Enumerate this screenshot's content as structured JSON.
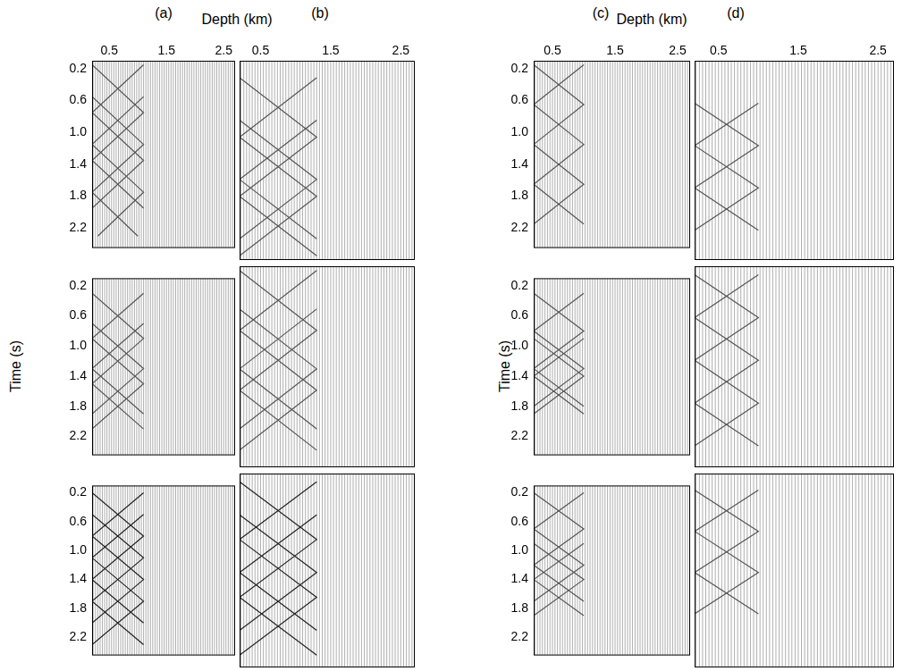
{
  "groups": [
    {
      "panels": [
        "(a)",
        "(b)"
      ],
      "x_label": "Depth (km)",
      "y_label": "Time (s)"
    },
    {
      "panels": [
        "(c)",
        "(d)"
      ],
      "x_label": "Depth (km)",
      "y_label": "Time (s)"
    }
  ],
  "trace_depths": [
    0.22,
    0.26,
    0.3,
    0.34,
    0.38,
    0.42,
    0.46,
    0.5,
    0.54,
    0.58,
    0.62,
    0.66,
    0.7,
    0.74,
    0.78,
    0.82,
    0.86,
    0.9,
    0.94,
    0.98,
    1.02,
    1.06,
    1.1,
    1.14,
    1.18,
    1.22,
    1.26,
    1.3,
    1.34,
    1.38,
    1.42,
    1.46,
    1.5,
    1.54,
    1.58,
    1.62,
    1.66,
    1.7,
    1.74,
    1.78,
    1.82,
    1.86,
    1.9,
    1.94,
    1.98,
    2.02,
    2.06,
    2.1,
    2.14,
    2.18,
    2.22,
    2.26,
    2.3,
    2.34,
    2.38,
    2.42,
    2.46,
    2.5,
    2.54,
    2.58,
    2.62,
    2.66,
    2.7
  ],
  "chart_data": [
    {
      "type": "line",
      "xlim": [
        0.2,
        2.7
      ],
      "xticks": [
        0.5,
        1.5,
        2.5
      ],
      "ylim": [
        0.1,
        2.45
      ],
      "yticks": [
        0.2,
        0.6,
        {
          "value": 1.0,
          "label": "1.0"
        },
        1.4,
        1.8,
        2.2
      ],
      "grid": false,
      "tick_labels": true,
      "color": "#555555",
      "marker": "none",
      "line_style": "solid",
      "series": [
        {
          "x": [
            0.2,
            1.1,
            0.2,
            1.1
          ],
          "values": [
            0.15,
            0.75,
            1.35,
            1.95
          ]
        },
        {
          "x": [
            1.1,
            0.2,
            1.1,
            0.2
          ],
          "values": [
            0.15,
            0.75,
            1.35,
            1.95
          ]
        },
        {
          "x": [
            0.2,
            1.1,
            0.2,
            1.0
          ],
          "values": [
            0.55,
            1.15,
            1.75,
            2.3
          ]
        },
        {
          "x": [
            1.1,
            0.2,
            1.1,
            0.3
          ],
          "values": [
            0.55,
            1.15,
            1.75,
            2.3
          ]
        }
      ]
    },
    {
      "type": "line",
      "xlim": [
        0.2,
        2.7
      ],
      "xticks": [
        0.5,
        1.5,
        2.5
      ],
      "ylim": [
        0.1,
        2.45
      ],
      "yticks": [
        0.2,
        0.6,
        {
          "value": 1.0,
          "label": "1.0"
        },
        1.4,
        1.8,
        2.2
      ],
      "grid": false,
      "tick_labels": "x",
      "color": "#555555",
      "marker": "none",
      "line_style": "solid",
      "series": [
        {
          "x": [
            0.2,
            1.3,
            0.2,
            1.3
          ],
          "values": [
            0.3,
            1.0,
            1.7,
            2.4
          ]
        },
        {
          "x": [
            1.3,
            0.2,
            1.3,
            0.2
          ],
          "values": [
            0.3,
            1.0,
            1.7,
            2.4
          ]
        },
        {
          "x": [
            0.2,
            1.3,
            0.2
          ],
          "values": [
            0.8,
            1.5,
            2.2
          ]
        },
        {
          "x": [
            1.3,
            0.2,
            1.3
          ],
          "values": [
            0.8,
            1.5,
            2.2
          ]
        }
      ]
    },
    {
      "type": "line",
      "xlim": [
        0.2,
        2.7
      ],
      "xticks": [
        0.5,
        1.5,
        2.5
      ],
      "ylim": [
        0.1,
        2.45
      ],
      "yticks": [
        0.2,
        0.6,
        {
          "value": 1.0,
          "label": "1.0"
        },
        1.4,
        1.8,
        2.2
      ],
      "grid": false,
      "tick_labels": true,
      "color": "#555555",
      "marker": "none",
      "line_style": "solid",
      "series": [
        {
          "x": [
            0.2,
            1.0,
            0.2,
            1.0,
            0.2
          ],
          "values": [
            0.15,
            0.65,
            1.15,
            1.65,
            2.15
          ]
        },
        {
          "x": [
            1.0,
            0.2,
            1.0,
            0.2,
            1.0
          ],
          "values": [
            0.15,
            0.65,
            1.15,
            1.65,
            2.15
          ]
        }
      ]
    },
    {
      "type": "line",
      "xlim": [
        0.2,
        2.7
      ],
      "xticks": [
        0.5,
        1.5,
        2.5
      ],
      "ylim": [
        0.1,
        2.45
      ],
      "yticks": [
        0.2,
        0.6,
        {
          "value": 1.0,
          "label": "1.0"
        },
        1.4,
        1.8,
        2.2
      ],
      "grid": false,
      "tick_labels": "x",
      "color": "#555555",
      "marker": "none",
      "line_style": "solid",
      "series": [
        {
          "x": [
            0.2,
            1.0,
            0.2,
            1.0
          ],
          "values": [
            0.6,
            1.1,
            1.6,
            2.1
          ]
        },
        {
          "x": [
            1.0,
            0.2,
            1.0,
            0.2
          ],
          "values": [
            0.6,
            1.1,
            1.6,
            2.1
          ]
        }
      ]
    },
    {
      "type": "line",
      "xlim": [
        0.2,
        2.7
      ],
      "xticks": [
        0.5,
        1.5,
        2.5
      ],
      "ylim": [
        0.1,
        2.45
      ],
      "yticks": [
        0.2,
        0.6,
        {
          "value": 1.0,
          "label": "1.0"
        },
        1.4,
        1.8,
        2.2
      ],
      "grid": false,
      "tick_labels": "y",
      "color": "#555555",
      "marker": "none",
      "line_style": "solid",
      "series": [
        {
          "x": [
            0.2,
            1.1,
            0.2,
            1.1
          ],
          "values": [
            0.3,
            0.9,
            1.5,
            2.1
          ]
        },
        {
          "x": [
            1.1,
            0.2,
            1.1,
            0.2
          ],
          "values": [
            0.3,
            0.9,
            1.5,
            2.1
          ]
        },
        {
          "x": [
            0.2,
            1.1,
            0.2
          ],
          "values": [
            0.7,
            1.3,
            1.9
          ]
        },
        {
          "x": [
            1.1,
            0.2,
            1.1
          ],
          "values": [
            0.7,
            1.3,
            1.9
          ]
        }
      ]
    },
    {
      "type": "line",
      "xlim": [
        0.2,
        2.7
      ],
      "xticks": [
        0.5,
        1.5,
        2.5
      ],
      "ylim": [
        0.1,
        2.45
      ],
      "yticks": [
        0.2,
        0.6,
        {
          "value": 1.0,
          "label": "1.0"
        },
        1.4,
        1.8,
        2.2
      ],
      "grid": false,
      "tick_labels": false,
      "color": "#555555",
      "marker": "none",
      "line_style": "solid",
      "series": [
        {
          "x": [
            0.2,
            1.3,
            0.2,
            1.3
          ],
          "values": [
            0.15,
            0.85,
            1.55,
            2.25
          ]
        },
        {
          "x": [
            1.3,
            0.2,
            1.3,
            0.2
          ],
          "values": [
            0.15,
            0.85,
            1.55,
            2.25
          ]
        },
        {
          "x": [
            0.2,
            1.3,
            0.2
          ],
          "values": [
            0.6,
            1.3,
            2.0
          ]
        },
        {
          "x": [
            1.3,
            0.2,
            1.3
          ],
          "values": [
            0.6,
            1.3,
            2.0
          ]
        }
      ]
    },
    {
      "type": "line",
      "xlim": [
        0.2,
        2.7
      ],
      "xticks": [
        0.5,
        1.5,
        2.5
      ],
      "ylim": [
        0.1,
        2.45
      ],
      "yticks": [
        0.2,
        0.6,
        {
          "value": 1.0,
          "label": "1.0"
        },
        1.4,
        1.8,
        2.2
      ],
      "grid": false,
      "tick_labels": "y",
      "color": "#555555",
      "marker": "none",
      "line_style": "solid",
      "series": [
        {
          "x": [
            0.2,
            1.0,
            0.2,
            1.0
          ],
          "values": [
            0.3,
            0.8,
            1.3,
            1.8
          ]
        },
        {
          "x": [
            1.0,
            0.2,
            1.0,
            0.2
          ],
          "values": [
            0.3,
            0.8,
            1.3,
            1.8
          ]
        },
        {
          "x": [
            0.2,
            1.0,
            0.2
          ],
          "values": [
            0.9,
            1.4,
            1.9
          ]
        },
        {
          "x": [
            1.0,
            0.2,
            1.0
          ],
          "values": [
            0.9,
            1.4,
            1.9
          ]
        }
      ]
    },
    {
      "type": "line",
      "xlim": [
        0.2,
        2.7
      ],
      "xticks": [
        0.5,
        1.5,
        2.5
      ],
      "ylim": [
        0.1,
        2.45
      ],
      "yticks": [
        0.2,
        0.6,
        {
          "value": 1.0,
          "label": "1.0"
        },
        1.4,
        1.8,
        2.2
      ],
      "grid": false,
      "tick_labels": false,
      "color": "#555555",
      "marker": "none",
      "line_style": "solid",
      "series": [
        {
          "x": [
            0.2,
            1.0,
            0.2,
            1.0,
            0.2
          ],
          "values": [
            0.2,
            0.7,
            1.2,
            1.7,
            2.2
          ]
        },
        {
          "x": [
            1.0,
            0.2,
            1.0,
            0.2,
            1.0
          ],
          "values": [
            0.2,
            0.7,
            1.2,
            1.7,
            2.2
          ]
        }
      ]
    },
    {
      "type": "line",
      "xlim": [
        0.2,
        2.7
      ],
      "xticks": [
        0.5,
        1.5,
        2.5
      ],
      "ylim": [
        0.1,
        2.45
      ],
      "yticks": [
        0.2,
        0.6,
        {
          "value": 1.0,
          "label": "1.0"
        },
        1.4,
        1.8,
        2.2
      ],
      "grid": false,
      "tick_labels": "y",
      "color": "#222222",
      "marker": "none",
      "line_style": "solid",
      "series": [
        {
          "x": [
            0.2,
            1.1,
            0.2,
            1.1
          ],
          "values": [
            0.2,
            0.8,
            1.4,
            2.0
          ]
        },
        {
          "x": [
            1.1,
            0.2,
            1.1,
            0.2
          ],
          "values": [
            0.2,
            0.8,
            1.4,
            2.0
          ]
        },
        {
          "x": [
            0.2,
            1.1,
            0.2,
            1.1
          ],
          "values": [
            0.5,
            1.1,
            1.7,
            2.3
          ]
        },
        {
          "x": [
            1.1,
            0.2,
            1.1,
            0.2
          ],
          "values": [
            0.5,
            1.1,
            1.7,
            2.3
          ]
        }
      ]
    },
    {
      "type": "line",
      "xlim": [
        0.2,
        2.7
      ],
      "xticks": [
        0.5,
        1.5,
        2.5
      ],
      "ylim": [
        0.1,
        2.45
      ],
      "yticks": [
        0.2,
        0.6,
        {
          "value": 1.0,
          "label": "1.0"
        },
        1.4,
        1.8,
        2.2
      ],
      "grid": false,
      "tick_labels": false,
      "color": "#222222",
      "marker": "none",
      "line_style": "solid",
      "series": [
        {
          "x": [
            0.2,
            1.3,
            0.2,
            1.3
          ],
          "values": [
            0.2,
            0.9,
            1.6,
            2.3
          ]
        },
        {
          "x": [
            1.3,
            0.2,
            1.3,
            0.2
          ],
          "values": [
            0.2,
            0.9,
            1.6,
            2.3
          ]
        },
        {
          "x": [
            0.2,
            1.3,
            0.2
          ],
          "values": [
            0.6,
            1.3,
            2.0
          ]
        },
        {
          "x": [
            1.3,
            0.2,
            1.3
          ],
          "values": [
            0.6,
            1.3,
            2.0
          ]
        }
      ]
    },
    {
      "type": "line",
      "xlim": [
        0.2,
        2.7
      ],
      "xticks": [
        0.5,
        1.5,
        2.5
      ],
      "ylim": [
        0.1,
        2.45
      ],
      "yticks": [
        0.2,
        0.6,
        {
          "value": 1.0,
          "label": "1.0"
        },
        1.4,
        1.8,
        2.2
      ],
      "grid": false,
      "tick_labels": "y",
      "color": "#555555",
      "marker": "none",
      "line_style": "solid",
      "series": [
        {
          "x": [
            0.2,
            1.0,
            0.2,
            1.0
          ],
          "values": [
            0.2,
            0.7,
            1.2,
            1.7
          ]
        },
        {
          "x": [
            1.0,
            0.2,
            1.0,
            0.2
          ],
          "values": [
            0.2,
            0.7,
            1.2,
            1.7
          ]
        },
        {
          "x": [
            0.2,
            1.0,
            0.2
          ],
          "values": [
            0.9,
            1.4,
            1.9
          ]
        },
        {
          "x": [
            1.0,
            0.2,
            1.0
          ],
          "values": [
            0.9,
            1.4,
            1.9
          ]
        }
      ]
    },
    {
      "type": "line",
      "xlim": [
        0.2,
        2.7
      ],
      "xticks": [
        0.5,
        1.5,
        2.5
      ],
      "ylim": [
        0.1,
        2.45
      ],
      "yticks": [
        0.2,
        0.6,
        {
          "value": 1.0,
          "label": "1.0"
        },
        1.4,
        1.8,
        2.2
      ],
      "grid": false,
      "tick_labels": false,
      "color": "#555555",
      "marker": "none",
      "line_style": "solid",
      "series": [
        {
          "x": [
            0.2,
            1.0,
            0.2,
            1.0
          ],
          "values": [
            0.3,
            0.8,
            1.3,
            1.8
          ]
        },
        {
          "x": [
            1.0,
            0.2,
            1.0,
            0.2
          ],
          "values": [
            0.3,
            0.8,
            1.3,
            1.8
          ]
        }
      ]
    }
  ]
}
